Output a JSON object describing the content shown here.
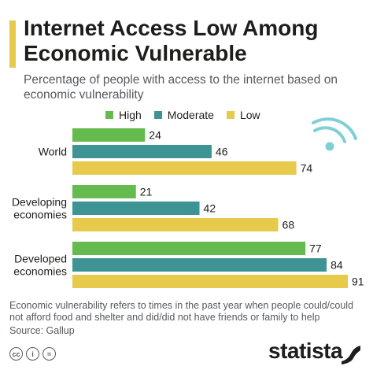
{
  "header": {
    "title": "Internet Access Low Among Economic Vulnerable",
    "subtitle": "Percentage of people with access to the internet based on economic vulnerability"
  },
  "chart_data": {
    "type": "bar",
    "orientation": "horizontal",
    "categories": [
      "World",
      "Developing economies",
      "Developed economies"
    ],
    "category_lines": [
      [
        "World"
      ],
      [
        "Developing",
        "economies"
      ],
      [
        "Developed",
        "economies"
      ]
    ],
    "series": [
      {
        "name": "High",
        "values": [
          24,
          21,
          77
        ],
        "color": "#66bb4f"
      },
      {
        "name": "Moderate",
        "values": [
          46,
          42,
          84
        ],
        "color": "#3e9395"
      },
      {
        "name": "Low",
        "values": [
          74,
          68,
          91
        ],
        "color": "#e7c94c"
      }
    ],
    "xlim": [
      0,
      91
    ],
    "grid": false,
    "legend_position": "top",
    "data_labels": true
  },
  "footer": {
    "note": "Economic vulnerability refers to times in the past year when people could/could not afford food and shelter and did/did not have friends or family to help",
    "source": "Source: Gallup",
    "licence_icons": [
      "cc",
      "i",
      "="
    ],
    "brand": "statista"
  },
  "icons": [
    "wifi-icon",
    "cc-icon",
    "attribution-icon",
    "no-derivatives-icon",
    "statista-logo"
  ]
}
